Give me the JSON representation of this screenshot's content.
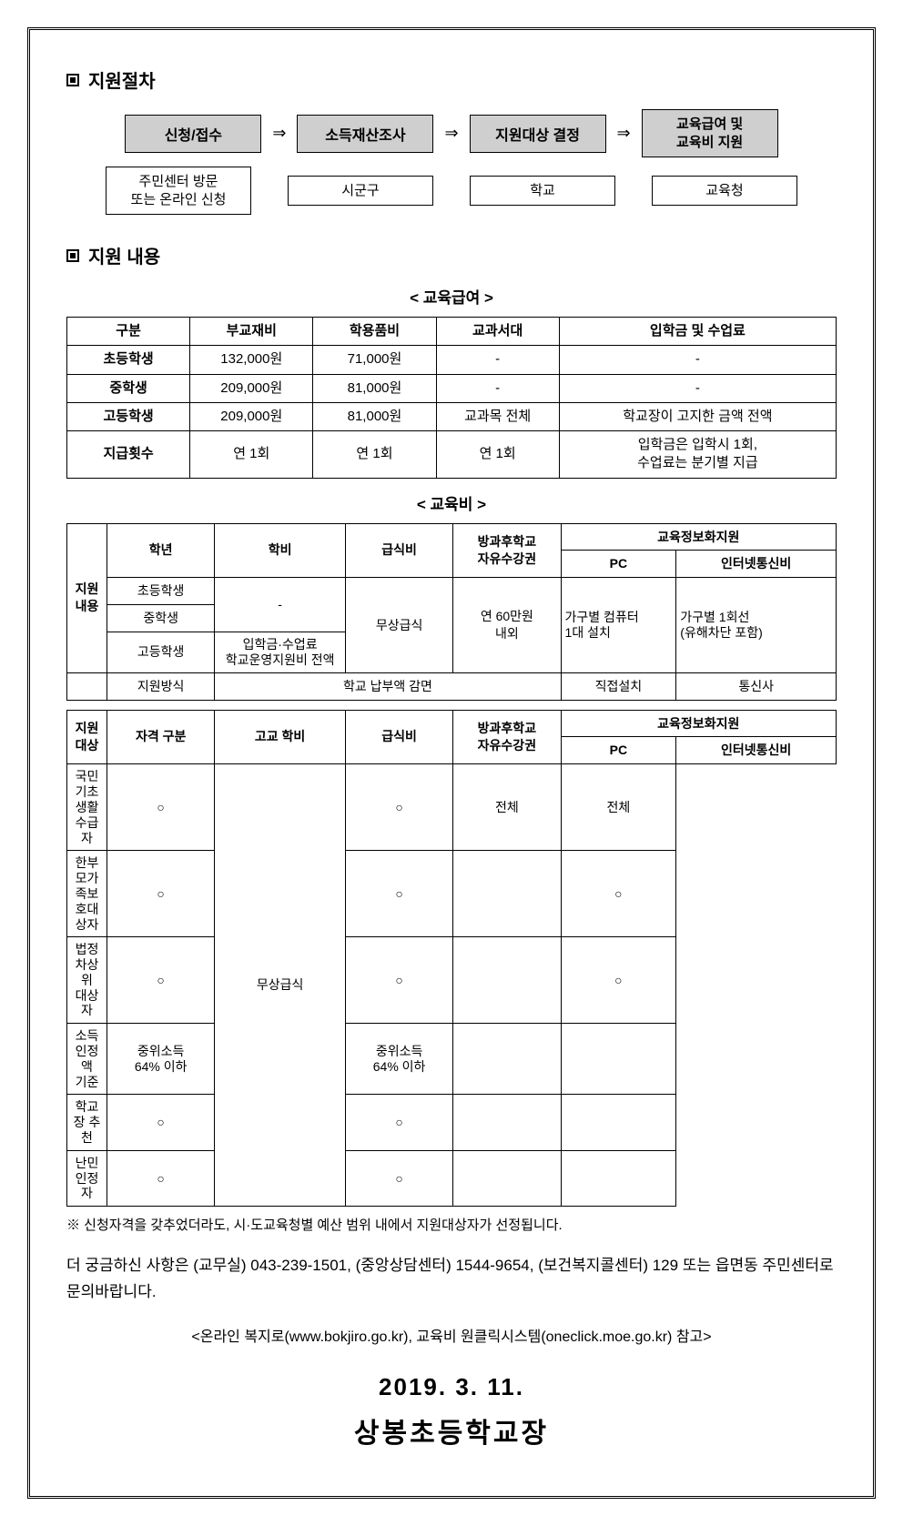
{
  "section1": {
    "title": "지원절차",
    "steps": [
      {
        "t": "신청/접수",
        "sub": "주민센터 방문\n또는 온라인 신청"
      },
      {
        "t": "소득재산조사",
        "sub": "시군구"
      },
      {
        "t": "지원대상 결정",
        "sub": "학교"
      },
      {
        "t": "교육급여 및\n교육비 지원",
        "sub": "교육청"
      }
    ],
    "arrow": "⇒"
  },
  "section2": {
    "title": "지원 내용",
    "sub1": "< 교육급여 >",
    "tbl1": {
      "head": [
        "구분",
        "부교재비",
        "학용품비",
        "교과서대",
        "입학금 및 수업료"
      ],
      "rows": [
        [
          "초등학생",
          "132,000원",
          "71,000원",
          "-",
          "-"
        ],
        [
          "중학생",
          "209,000원",
          "81,000원",
          "-",
          "-"
        ],
        [
          "고등학생",
          "209,000원",
          "81,000원",
          "교과목 전체",
          "학교장이 고지한 금액 전액"
        ],
        [
          "지급횟수",
          "연 1회",
          "연 1회",
          "연 1회",
          "입학금은 입학시 1회,\n수업료는 분기별 지급"
        ]
      ]
    },
    "sub2": "< 교육비 >",
    "tbl2": {
      "leftHdr": "지원\n내용",
      "head1": [
        "학년",
        "학비",
        "급식비",
        "방과후학교\n자유수강권"
      ],
      "head2_span": "교육정보화지원",
      "head2_cols": [
        "PC",
        "인터넷통신비"
      ],
      "rowA": {
        "label": "초등학생"
      },
      "rowB": {
        "label": "중학생",
        "tuition": "-"
      },
      "rowC": {
        "label": "고등학생",
        "tuition": "입학금·수업료\n학교운영지원비 전액"
      },
      "meal": "무상급식",
      "after": "연 60만원\n내외",
      "pc": "가구별 컴퓨터\n1대 설치",
      "net": "가구별 1회선\n(유해차단 포함)",
      "rowD": [
        "지원방식",
        "학교 납부액 감면",
        "직접설치",
        "통신사"
      ]
    },
    "tbl3": {
      "leftHdr": "지원\n대상",
      "head1": [
        "자격 구분",
        "고교 학비",
        "급식비",
        "방과후학교\n자유수강권"
      ],
      "head2_span": "교육정보화지원",
      "head2_cols": [
        "PC",
        "인터넷통신비"
      ],
      "rows": [
        {
          "label": "국민기초생활\n수급자",
          "c": [
            "○",
            "",
            "○",
            "전체",
            "전체"
          ]
        },
        {
          "label": "한부모가족보\n호대상자",
          "c": [
            "○",
            "",
            "○",
            "",
            "○"
          ]
        },
        {
          "label": "법정차상위\n대상자",
          "c": [
            "○",
            "",
            "○",
            "",
            "○"
          ]
        },
        {
          "label": "소득인정액\n기준",
          "c": [
            "중위소득\n64% 이하",
            "",
            "중위소득\n64% 이하",
            "",
            ""
          ]
        },
        {
          "label": "학교장 추천",
          "c": [
            "○",
            "",
            "○",
            "",
            ""
          ]
        },
        {
          "label": "난민인정자",
          "c": [
            "○",
            "",
            "○",
            "",
            ""
          ]
        }
      ],
      "meal": "무상급식"
    }
  },
  "footnote": "※ 신청자격을 갖추었더라도, 시·도교육청별 예산 범위 내에서 지원대상자가 선정됩니다.",
  "contact": "더 궁금하신 사항은 (교무실) 043-239-1501, (중앙상담센터) 1544-9654, (보건복지콜센터) 129 또는 읍면동 주민센터로 문의바랍니다.",
  "ref": "<온라인 복지로(www.bokjiro.go.kr), 교육비 원클릭시스템(oneclick.moe.go.kr) 참고>",
  "date": "2019.  3. 11.",
  "signer": "상봉초등학교장"
}
